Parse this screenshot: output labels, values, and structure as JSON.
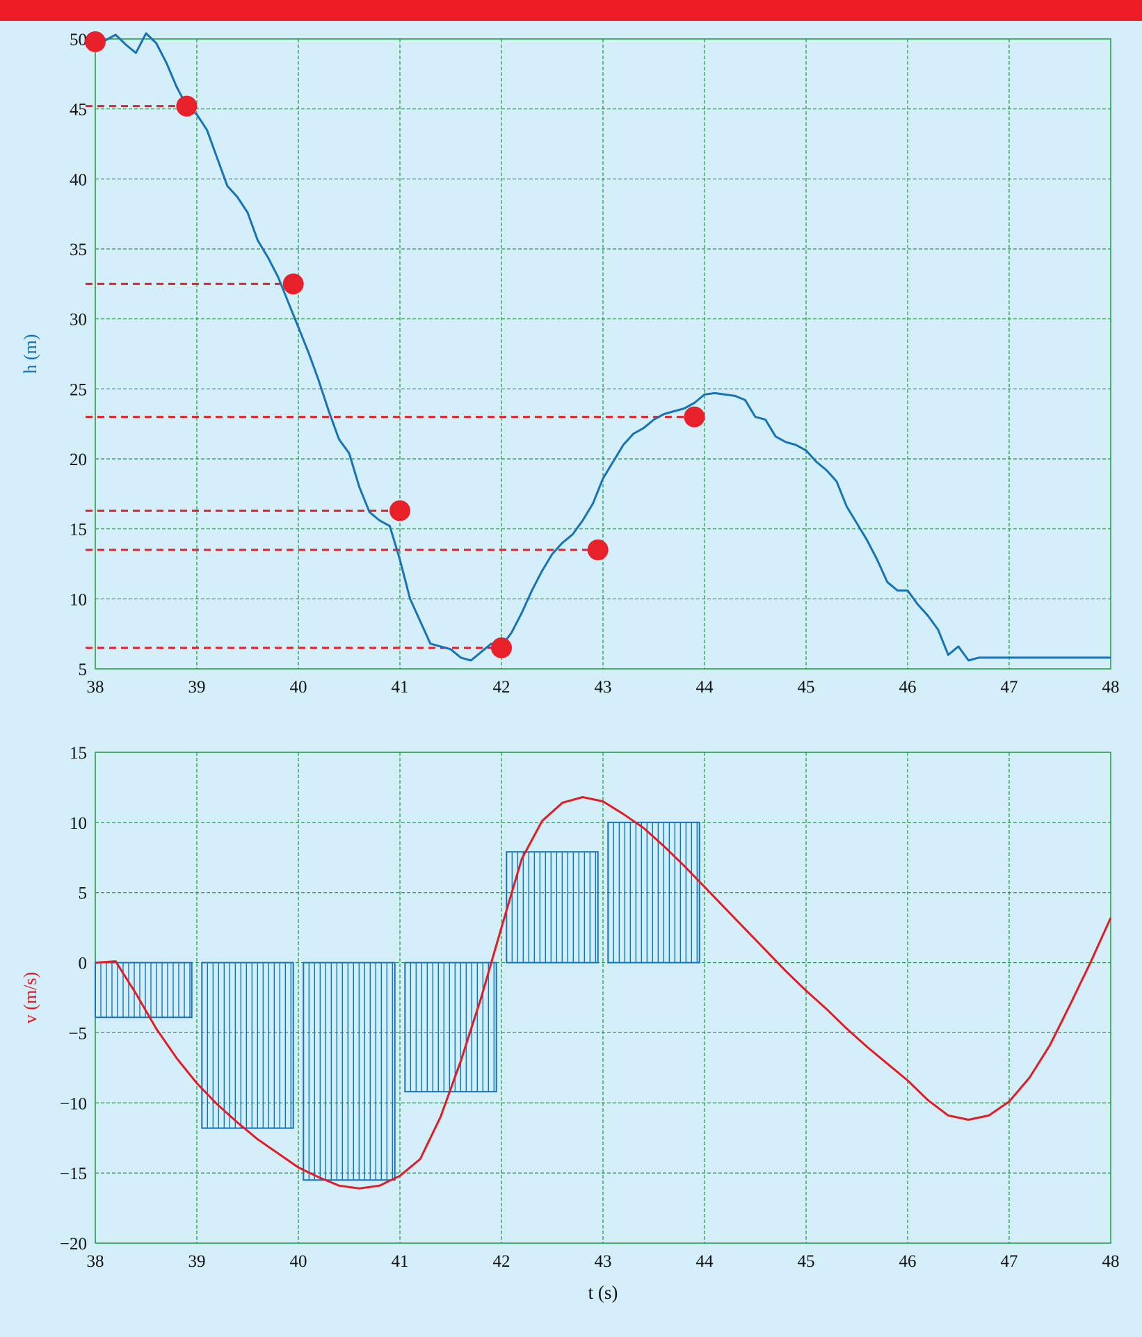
{
  "colors": {
    "background": "#d4eefa",
    "banner": "#ee1c25",
    "grid": "#1a9a3a",
    "height_curve": "#1673b6",
    "velocity_curve": "#e31b23",
    "marker": "#e8202a",
    "bars": "#1673b6"
  },
  "chart_data": [
    {
      "type": "line",
      "xlabel": "",
      "ylabel": "h (m)",
      "xlim": [
        38,
        48
      ],
      "ylim": [
        5,
        50
      ],
      "xticks": [
        "38",
        "39",
        "40",
        "41",
        "42",
        "43",
        "44",
        "45",
        "46",
        "47",
        "48"
      ],
      "yticks": [
        "5",
        "10",
        "15",
        "20",
        "25",
        "30",
        "35",
        "40",
        "45",
        "50"
      ],
      "grid": true,
      "series": [
        {
          "x": [
            38.0,
            38.1,
            38.2,
            38.3,
            38.4,
            38.5,
            38.6,
            38.7,
            38.8,
            38.9,
            39.0,
            39.1,
            39.2,
            39.3,
            39.4,
            39.5,
            39.6,
            39.7,
            39.8,
            39.9,
            40.0,
            40.1,
            40.2,
            40.3,
            40.4,
            40.5,
            40.6,
            40.7,
            40.8,
            40.9,
            41.0,
            41.1,
            41.2,
            41.3,
            41.4,
            41.5,
            41.6,
            41.7,
            41.8,
            41.9,
            42.0,
            42.1,
            42.2,
            42.3,
            42.4,
            42.5,
            42.6,
            42.7,
            42.8,
            42.9,
            43.0,
            43.1,
            43.2,
            43.3,
            43.4,
            43.5,
            43.6,
            43.7,
            43.8,
            43.9,
            44.0,
            44.1,
            44.2,
            44.3,
            44.4,
            44.5,
            44.6,
            44.7,
            44.8,
            44.9,
            45.0,
            45.1,
            45.2,
            45.3,
            45.4,
            45.5,
            45.6,
            45.7,
            45.8,
            45.9,
            46.0,
            46.1,
            46.2,
            46.3,
            46.4,
            46.5,
            46.6,
            46.7,
            46.8,
            46.9,
            47.0,
            47.1,
            47.2,
            47.3,
            47.4,
            47.5,
            47.6,
            47.7,
            47.8,
            47.9,
            48.0
          ],
          "y": [
            49.8,
            49.9,
            50.3,
            49.6,
            49.0,
            50.4,
            49.7,
            48.3,
            46.6,
            45.2,
            44.6,
            43.5,
            41.5,
            39.5,
            38.7,
            37.6,
            35.6,
            34.4,
            33.0,
            31.2,
            29.4,
            27.6,
            25.6,
            23.4,
            21.4,
            20.4,
            18.0,
            16.2,
            15.6,
            15.2,
            12.8,
            10.0,
            8.4,
            6.8,
            6.6,
            6.4,
            5.8,
            5.6,
            6.2,
            6.8,
            6.6,
            7.6,
            9.0,
            10.6,
            12.0,
            13.2,
            14.0,
            14.6,
            15.6,
            16.8,
            18.6,
            19.8,
            21.0,
            21.8,
            22.2,
            22.8,
            23.2,
            23.4,
            23.6,
            24.0,
            24.6,
            24.7,
            24.6,
            24.5,
            24.2,
            23.0,
            22.8,
            21.6,
            21.2,
            21.0,
            20.6,
            19.8,
            19.2,
            18.4,
            16.6,
            15.4,
            14.2,
            12.8,
            11.2,
            10.6,
            10.6,
            9.6,
            8.8,
            7.8,
            6.0,
            6.6,
            5.6,
            5.8,
            5.8,
            5.8,
            5.8,
            5.8,
            5.8,
            5.8,
            5.8,
            5.8,
            5.8,
            5.8,
            5.8,
            5.8,
            5.8
          ]
        }
      ],
      "markers": [
        {
          "x": 38.0,
          "y": 49.8
        },
        {
          "x": 38.9,
          "y": 45.2
        },
        {
          "x": 39.95,
          "y": 32.5
        },
        {
          "x": 41.0,
          "y": 16.3
        },
        {
          "x": 42.0,
          "y": 6.5
        },
        {
          "x": 42.95,
          "y": 13.5
        },
        {
          "x": 43.9,
          "y": 23.0
        }
      ]
    },
    {
      "type": "bar",
      "xlabel": "t (s)",
      "ylabel": "v (m/s)",
      "xlim": [
        38,
        48
      ],
      "ylim": [
        -20,
        15
      ],
      "xticks": [
        "38",
        "39",
        "40",
        "41",
        "42",
        "43",
        "44",
        "45",
        "46",
        "47",
        "48"
      ],
      "yticks": [
        "15",
        "10",
        "5",
        "0",
        "−5",
        "−10",
        "−15",
        "−20"
      ],
      "grid": true,
      "bars": [
        {
          "x0": 38.0,
          "x1": 38.95,
          "value": -3.9
        },
        {
          "x0": 39.05,
          "x1": 39.95,
          "value": -11.8
        },
        {
          "x0": 40.05,
          "x1": 40.95,
          "value": -15.5
        },
        {
          "x0": 41.05,
          "x1": 41.95,
          "value": -9.2
        },
        {
          "x0": 42.05,
          "x1": 42.95,
          "value": 7.9
        },
        {
          "x0": 43.05,
          "x1": 43.95,
          "value": 10.0
        }
      ],
      "series": [
        {
          "x": [
            38.0,
            38.2,
            38.4,
            38.6,
            38.8,
            39.0,
            39.2,
            39.4,
            39.6,
            39.8,
            40.0,
            40.2,
            40.4,
            40.6,
            40.8,
            41.0,
            41.2,
            41.4,
            41.6,
            41.8,
            42.0,
            42.2,
            42.4,
            42.6,
            42.8,
            43.0,
            43.2,
            43.4,
            43.6,
            43.8,
            44.0,
            44.2,
            44.4,
            44.6,
            44.8,
            45.0,
            45.2,
            45.4,
            45.6,
            45.8,
            46.0,
            46.2,
            46.4,
            46.6,
            46.8,
            47.0,
            47.2,
            47.4,
            47.6,
            47.8,
            48.0
          ],
          "y": [
            0,
            0.1,
            -2.2,
            -4.7,
            -6.8,
            -8.6,
            -10.1,
            -11.4,
            -12.6,
            -13.6,
            -14.6,
            -15.3,
            -15.9,
            -16.1,
            -15.9,
            -15.2,
            -14.0,
            -11.0,
            -7.0,
            -2.5,
            2.5,
            7.4,
            10.1,
            11.4,
            11.8,
            11.5,
            10.6,
            9.6,
            8.3,
            6.9,
            5.4,
            3.9,
            2.4,
            0.9,
            -0.6,
            -2.0,
            -3.3,
            -4.7,
            -6.0,
            -7.2,
            -8.4,
            -9.8,
            -10.9,
            -11.2,
            -10.9,
            -9.9,
            -8.2,
            -5.9,
            -3.0,
            0.0,
            3.2
          ]
        }
      ]
    }
  ]
}
